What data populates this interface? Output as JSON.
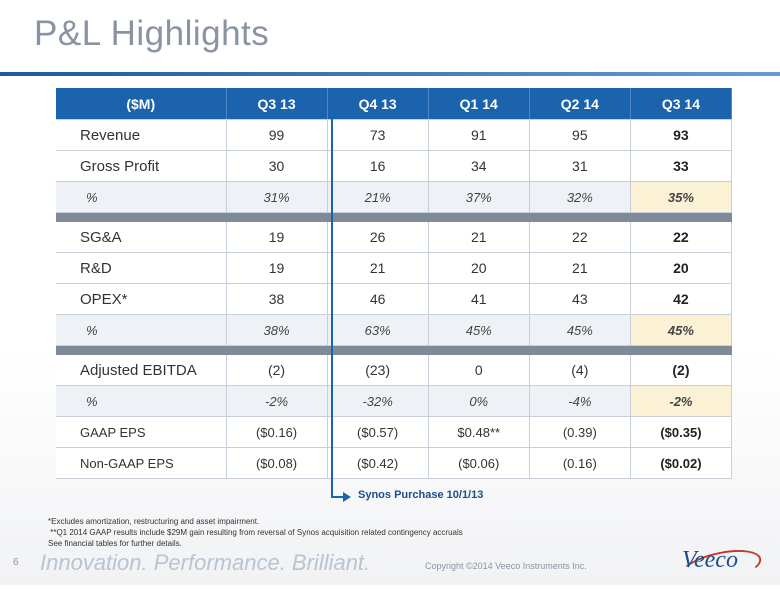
{
  "title": "P&L Highlights",
  "headers": [
    "($M)",
    "Q3 13",
    "Q4 13",
    "Q1 14",
    "Q2 14",
    "Q3 14"
  ],
  "rows": {
    "revenue": [
      "Revenue",
      "99",
      "73",
      "91",
      "95",
      "93"
    ],
    "gross_profit": [
      "Gross Profit",
      "30",
      "16",
      "34",
      "31",
      "33"
    ],
    "gross_pct": [
      "%",
      "31%",
      "21%",
      "37%",
      "32%",
      "35%"
    ],
    "sga": [
      "SG&A",
      "19",
      "26",
      "21",
      "22",
      "22"
    ],
    "rd": [
      "R&D",
      "19",
      "21",
      "20",
      "21",
      "20"
    ],
    "opex": [
      "OPEX*",
      "38",
      "46",
      "41",
      "43",
      "42"
    ],
    "opex_pct": [
      "%",
      "38%",
      "63%",
      "45%",
      "45%",
      "45%"
    ],
    "ebitda": [
      "Adjusted EBITDA",
      "(2)",
      "(23)",
      "0",
      "(4)",
      "(2)"
    ],
    "ebitda_pct": [
      "%",
      "-2%",
      "-32%",
      "0%",
      "-4%",
      "-2%"
    ],
    "gaap_eps": [
      "GAAP EPS",
      "($0.16)",
      "($0.57)",
      "$0.48**",
      "(0.39)",
      "($0.35)"
    ],
    "nongaap_eps": [
      "Non-GAAP EPS",
      "($0.08)",
      "($0.42)",
      "($0.06)",
      "(0.16)",
      "($0.02)"
    ]
  },
  "synos_label": "Synos Purchase 10/1/13",
  "footnotes": [
    "*Excludes amortization, restructuring and asset impairment.",
    " **Q1 2014 GAAP results include $29M gain resulting from reversal of Synos acquisition related contingency accruals",
    "See financial tables for further details."
  ],
  "page_number": "6",
  "tagline": "Innovation. Performance. Brilliant.",
  "copyright": "Copyright ©2014 Veeco Instruments Inc.",
  "logo_text": "Veeco",
  "colors": {
    "header_blue": "#1b63ad",
    "highlight": "#fbf1d4",
    "title_gray": "#8a93a3"
  }
}
